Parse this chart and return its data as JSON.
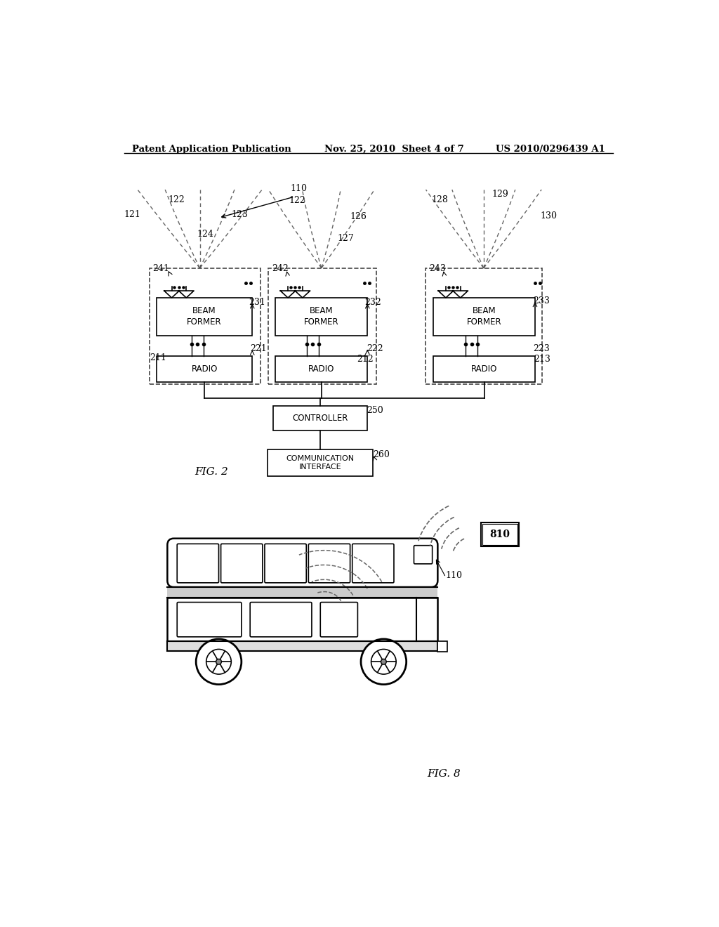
{
  "title_left": "Patent Application Publication",
  "title_mid": "Nov. 25, 2010  Sheet 4 of 7",
  "title_right": "US 2010/0296439 A1",
  "fig2_label": "FIG. 2",
  "fig8_label": "FIG. 8",
  "bg_color": "#ffffff",
  "line_color": "#000000",
  "dashed_color": "#666666"
}
